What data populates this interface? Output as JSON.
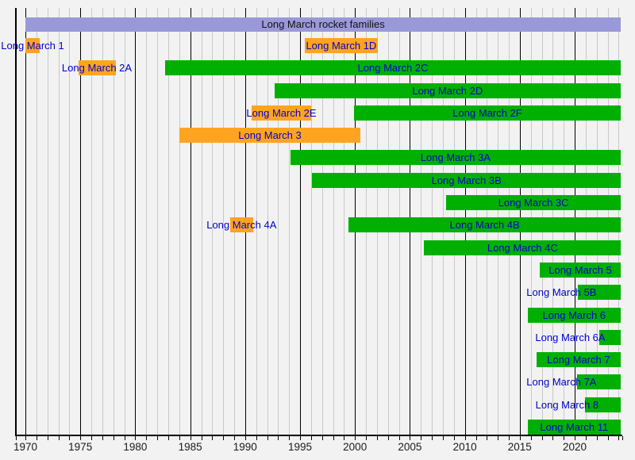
{
  "colors": {
    "background": "#f2f2f2",
    "grid_minor": "#c9c9c9",
    "grid_major": "#000000",
    "family_bar": "#9999d9",
    "family_text": "#111111",
    "bar_label_text": "#0000cc",
    "active": "#00b000",
    "retired": "#ffa420"
  },
  "chart_data": {
    "type": "timeline",
    "title": "Long March rocket families",
    "x_axis": {
      "min": 1969.13,
      "max": 2024.3,
      "minor_tick_step": 1,
      "ticks": [
        {
          "year": 1970,
          "label": "1970"
        },
        {
          "year": 1975,
          "label": "1975"
        },
        {
          "year": 1980,
          "label": "1980"
        },
        {
          "year": 1985,
          "label": "1985"
        },
        {
          "year": 1990,
          "label": "1990"
        },
        {
          "year": 1995,
          "label": "1995"
        },
        {
          "year": 2000,
          "label": "2000"
        },
        {
          "year": 2005,
          "label": "2005"
        },
        {
          "year": 2010,
          "label": "2010"
        },
        {
          "year": 2015,
          "label": "2015"
        },
        {
          "year": 2020,
          "label": "2020"
        }
      ]
    },
    "family_bar": {
      "label": "Long March rocket families",
      "start": 1970.0,
      "end": 2024.2
    },
    "status_colors": {
      "active": "#00b000",
      "retired": "#ffa420"
    },
    "rockets": [
      {
        "label": "Long March 1",
        "start": 1970.0,
        "end": 1971.3,
        "status": "retired",
        "row": 0
      },
      {
        "label": "Long March 1D",
        "start": 1995.4,
        "end": 2002.1,
        "status": "retired",
        "row": 0
      },
      {
        "label": "Long March 2A",
        "start": 1974.8,
        "end": 1978.2,
        "status": "retired",
        "row": 1
      },
      {
        "label": "Long March 2C",
        "start": 1982.7,
        "end": 2024.2,
        "status": "active",
        "row": 1
      },
      {
        "label": "Long March 2D",
        "start": 1992.65,
        "end": 2024.2,
        "status": "active",
        "row": 2
      },
      {
        "label": "Long March 2E",
        "start": 1990.6,
        "end": 1996.0,
        "status": "retired",
        "row": 3
      },
      {
        "label": "Long March 2F",
        "start": 1999.9,
        "end": 2024.2,
        "status": "active",
        "row": 3
      },
      {
        "label": "Long March 3",
        "start": 1984.0,
        "end": 2000.5,
        "status": "retired",
        "row": 4
      },
      {
        "label": "Long March 3A",
        "start": 1994.1,
        "end": 2024.2,
        "status": "active",
        "row": 5
      },
      {
        "label": "Long March 3B",
        "start": 1996.1,
        "end": 2024.2,
        "status": "active",
        "row": 6
      },
      {
        "label": "Long March 3C",
        "start": 2008.3,
        "end": 2024.2,
        "status": "active",
        "row": 7
      },
      {
        "label": "Long March 4A",
        "start": 1988.65,
        "end": 1990.7,
        "status": "retired",
        "row": 8
      },
      {
        "label": "Long March 4B",
        "start": 1999.4,
        "end": 2024.2,
        "status": "active",
        "row": 8
      },
      {
        "label": "Long March 4C",
        "start": 2006.3,
        "end": 2024.2,
        "status": "active",
        "row": 9
      },
      {
        "label": "Long March 5",
        "start": 2016.8,
        "end": 2024.2,
        "status": "active",
        "row": 10
      },
      {
        "label": "Long March 5B",
        "start": 2020.3,
        "end": 2024.2,
        "status": "active",
        "row": 11,
        "label_year": 2018.8
      },
      {
        "label": "Long March 6",
        "start": 2015.7,
        "end": 2024.2,
        "status": "active",
        "row": 12
      },
      {
        "label": "Long March 6A",
        "start": 2022.2,
        "end": 2024.2,
        "status": "active",
        "row": 13,
        "label_year": 2019.6
      },
      {
        "label": "Long March 7",
        "start": 2016.5,
        "end": 2024.2,
        "status": "active",
        "row": 14
      },
      {
        "label": "Long March 7A",
        "start": 2020.2,
        "end": 2024.2,
        "status": "active",
        "row": 15,
        "label_year": 2018.8
      },
      {
        "label": "Long March 8",
        "start": 2020.9,
        "end": 2024.2,
        "status": "active",
        "row": 16,
        "label_year": 2019.3
      },
      {
        "label": "Long March 11",
        "start": 2015.7,
        "end": 2024.2,
        "status": "active",
        "row": 17
      }
    ]
  }
}
